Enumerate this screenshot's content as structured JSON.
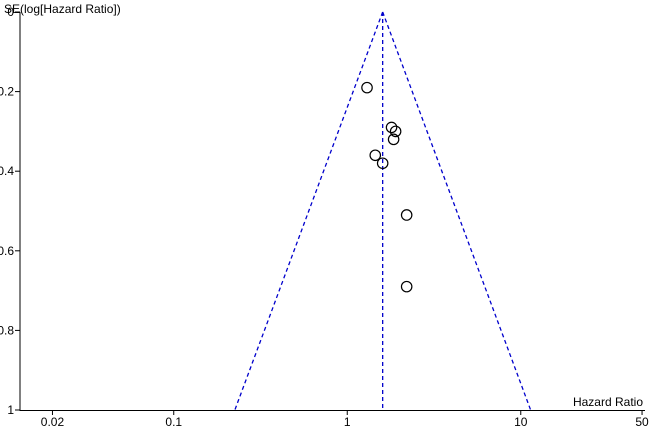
{
  "chart_data": {
    "type": "scatter",
    "xlabel": "Hazard Ratio",
    "ylabel": "SE(log[Hazard Ratio])",
    "x_scale": "log",
    "x_ticks": [
      0.02,
      0.1,
      1,
      10,
      50
    ],
    "x_tick_labels": [
      "0.02",
      "0.1",
      "1",
      "10",
      "50"
    ],
    "xlim": [
      0.013,
      52
    ],
    "y_axis_inverted": true,
    "y_ticks": [
      0,
      0.2,
      0.4,
      0.6,
      0.8,
      1
    ],
    "y_tick_labels": [
      "0",
      "0.2",
      "0.4",
      "0.6",
      "0.8",
      "1"
    ],
    "ylim": [
      0,
      1
    ],
    "pooled_estimate": 1.6,
    "funnel_limits_at_se_1": [
      0.225,
      11.4
    ],
    "points": [
      {
        "x": 1.3,
        "y": 0.19
      },
      {
        "x": 1.8,
        "y": 0.29
      },
      {
        "x": 1.9,
        "y": 0.3
      },
      {
        "x": 1.85,
        "y": 0.32
      },
      {
        "x": 1.45,
        "y": 0.36
      },
      {
        "x": 1.6,
        "y": 0.38
      },
      {
        "x": 2.2,
        "y": 0.51
      },
      {
        "x": 2.2,
        "y": 0.69
      }
    ],
    "colors": {
      "funnel": "#0000cc",
      "points": "#000000",
      "axes": "#000000"
    }
  }
}
